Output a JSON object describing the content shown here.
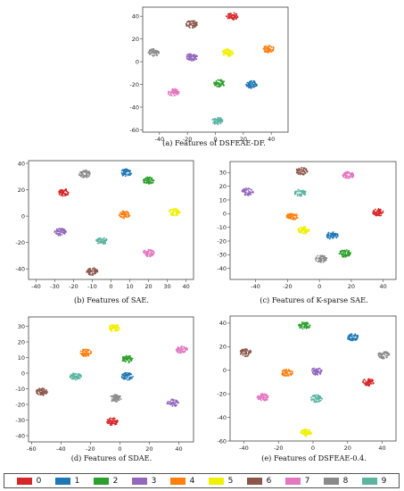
{
  "palette": [
    "#d62728",
    "#1f77b4",
    "#2ca02c",
    "#9467bd",
    "#ff7f0e",
    "#f0f000",
    "#8c564b",
    "#e377c2",
    "#8a8a8a",
    "#5ab4a0"
  ],
  "legend": {
    "labels": [
      "0",
      "1",
      "2",
      "3",
      "4",
      "5",
      "6",
      "7",
      "8",
      "9"
    ]
  },
  "captions": {
    "a": "(a)  Features of DSFEAE-DF.",
    "b": "(b)  Features of SAE.",
    "c": "(c)  Features of K-sparse SAE.",
    "d": "(d)  Features of SDAE.",
    "e": "(e)  Features of DSFEAE-0.4."
  },
  "chart_data": [
    {
      "id": "a",
      "type": "scatter",
      "xlim": [
        -52,
        52
      ],
      "ylim": [
        -62,
        48
      ],
      "xticks": [
        "-40",
        "-20",
        "0",
        "20",
        "40"
      ],
      "yticks": [
        "-60",
        "-40",
        "-20",
        "0",
        "20",
        "40"
      ],
      "clusters": [
        {
          "label": "0",
          "x": 12,
          "y": 40
        },
        {
          "label": "1",
          "x": 26,
          "y": -20
        },
        {
          "label": "2",
          "x": 3,
          "y": -19
        },
        {
          "label": "3",
          "x": -17,
          "y": 4
        },
        {
          "label": "4",
          "x": 38,
          "y": 11
        },
        {
          "label": "5",
          "x": 9,
          "y": 8
        },
        {
          "label": "6",
          "x": -17,
          "y": 33
        },
        {
          "label": "7",
          "x": -30,
          "y": -27
        },
        {
          "label": "8",
          "x": -44,
          "y": 8
        },
        {
          "label": "9",
          "x": 1,
          "y": -52
        }
      ]
    },
    {
      "id": "b",
      "type": "scatter",
      "xlim": [
        -44,
        44
      ],
      "ylim": [
        -48,
        42
      ],
      "xticks": [
        "-40",
        "-30",
        "-20",
        "-10",
        "0",
        "10",
        "20",
        "30",
        "40"
      ],
      "yticks": [
        "-40",
        "-20",
        "0",
        "20",
        "40"
      ],
      "clusters": [
        {
          "label": "0",
          "x": -25,
          "y": 18
        },
        {
          "label": "1",
          "x": 8,
          "y": 33
        },
        {
          "label": "2",
          "x": 20,
          "y": 27
        },
        {
          "label": "3",
          "x": -27,
          "y": -12
        },
        {
          "label": "4",
          "x": 7,
          "y": 1
        },
        {
          "label": "5",
          "x": 34,
          "y": 3
        },
        {
          "label": "6",
          "x": -10,
          "y": -42
        },
        {
          "label": "7",
          "x": 20,
          "y": -28
        },
        {
          "label": "8",
          "x": -14,
          "y": 32
        },
        {
          "label": "9",
          "x": -5,
          "y": -19
        }
      ]
    },
    {
      "id": "c",
      "type": "scatter",
      "xlim": [
        -56,
        48
      ],
      "ylim": [
        -48,
        38
      ],
      "xticks": [
        "-40",
        "-20",
        "0",
        "20",
        "40"
      ],
      "yticks": [
        "-40",
        "-30",
        "-20",
        "-10",
        "0",
        "10",
        "20",
        "30"
      ],
      "clusters": [
        {
          "label": "0",
          "x": 37,
          "y": 1
        },
        {
          "label": "1",
          "x": 8,
          "y": -16
        },
        {
          "label": "2",
          "x": 16,
          "y": -29
        },
        {
          "label": "3",
          "x": -45,
          "y": 16
        },
        {
          "label": "4",
          "x": -17,
          "y": -2
        },
        {
          "label": "5",
          "x": -10,
          "y": -12
        },
        {
          "label": "6",
          "x": -11,
          "y": 31
        },
        {
          "label": "7",
          "x": 18,
          "y": 28
        },
        {
          "label": "8",
          "x": 1,
          "y": -33
        },
        {
          "label": "9",
          "x": -12,
          "y": 15
        }
      ]
    },
    {
      "id": "d",
      "type": "scatter",
      "xlim": [
        -62,
        50
      ],
      "ylim": [
        -44,
        36
      ],
      "xticks": [
        "-60",
        "-40",
        "-20",
        "0",
        "20",
        "40"
      ],
      "yticks": [
        "-40",
        "-30",
        "-20",
        "-10",
        "0",
        "10",
        "20",
        "30"
      ],
      "clusters": [
        {
          "label": "0",
          "x": -5,
          "y": -31
        },
        {
          "label": "1",
          "x": 5,
          "y": -2
        },
        {
          "label": "2",
          "x": 5,
          "y": 9
        },
        {
          "label": "3",
          "x": 36,
          "y": -19
        },
        {
          "label": "4",
          "x": -23,
          "y": 13
        },
        {
          "label": "5",
          "x": -4,
          "y": 29
        },
        {
          "label": "6",
          "x": -53,
          "y": -12
        },
        {
          "label": "7",
          "x": 42,
          "y": 15
        },
        {
          "label": "8",
          "x": -3,
          "y": -16
        },
        {
          "label": "9",
          "x": -30,
          "y": -2
        }
      ]
    },
    {
      "id": "e",
      "type": "scatter",
      "xlim": [
        -48,
        48
      ],
      "ylim": [
        -60,
        46
      ],
      "xticks": [
        "-40",
        "-20",
        "0",
        "20",
        "40"
      ],
      "yticks": [
        "-60",
        "-40",
        "-20",
        "0",
        "20",
        "40"
      ],
      "clusters": [
        {
          "label": "0",
          "x": 32,
          "y": -10
        },
        {
          "label": "1",
          "x": 23,
          "y": 28
        },
        {
          "label": "2",
          "x": -5,
          "y": 38
        },
        {
          "label": "3",
          "x": 2,
          "y": -1
        },
        {
          "label": "4",
          "x": -15,
          "y": -2
        },
        {
          "label": "5",
          "x": -4,
          "y": -53
        },
        {
          "label": "6",
          "x": -39,
          "y": 15
        },
        {
          "label": "7",
          "x": -29,
          "y": -23
        },
        {
          "label": "8",
          "x": 41,
          "y": 13
        },
        {
          "label": "9",
          "x": 2,
          "y": -24
        }
      ]
    }
  ]
}
